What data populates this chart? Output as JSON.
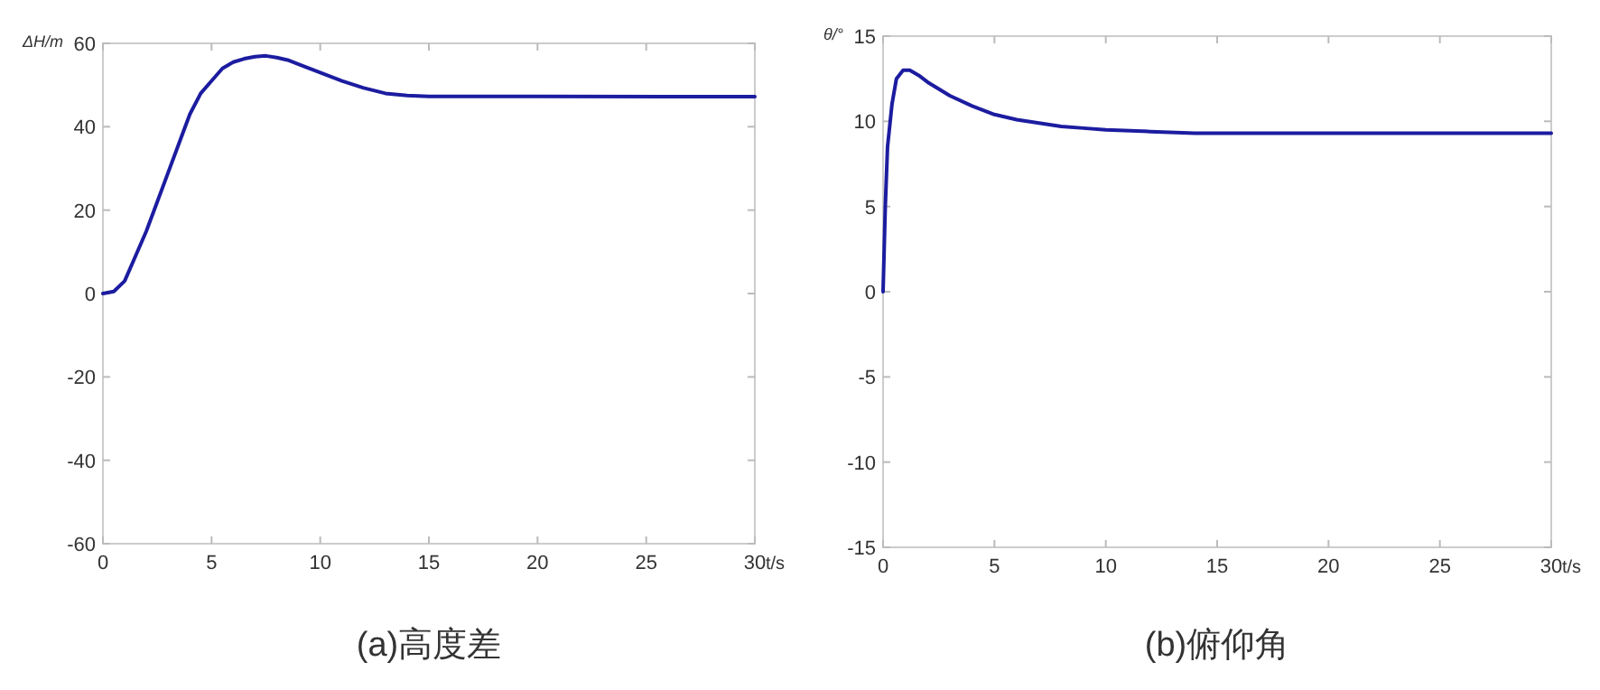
{
  "chart_data": [
    {
      "type": "line",
      "title": "(a)高度差",
      "xlabel": "t/s",
      "ylabel": "ΔH/m",
      "xlim": [
        0,
        30
      ],
      "ylim": [
        -60,
        60
      ],
      "xticks": [
        0,
        5,
        10,
        15,
        20,
        25,
        30
      ],
      "yticks": [
        -60,
        -40,
        -20,
        0,
        20,
        40,
        60
      ],
      "x": [
        0,
        0.5,
        1,
        1.5,
        2,
        2.5,
        3,
        3.5,
        4,
        4.5,
        5,
        5.5,
        6,
        6.5,
        7,
        7.5,
        8,
        8.5,
        9,
        10,
        11,
        12,
        13,
        14,
        15,
        20,
        26,
        30
      ],
      "series": [
        {
          "color": "#1c1ca0",
          "values": [
            0,
            0.5,
            3,
            9,
            15,
            22,
            29,
            36,
            43,
            48,
            51,
            54,
            55.5,
            56.3,
            56.8,
            57,
            56.6,
            56,
            55,
            53,
            51,
            49.3,
            48,
            47.5,
            47.3,
            47.3,
            47.2,
            47.2
          ]
        }
      ]
    },
    {
      "type": "line",
      "title": "(b)俯仰角",
      "xlabel": "t/s",
      "ylabel": "θ/°",
      "xlim": [
        0,
        30
      ],
      "ylim": [
        -15,
        15
      ],
      "xticks": [
        0,
        5,
        10,
        15,
        20,
        25,
        30
      ],
      "yticks": [
        -15,
        -10,
        -5,
        0,
        5,
        10,
        15
      ],
      "x": [
        0,
        0.1,
        0.2,
        0.4,
        0.6,
        0.9,
        1.2,
        1.6,
        2,
        3,
        4,
        5,
        6,
        7,
        8,
        9,
        10,
        12,
        14,
        20,
        30
      ],
      "series": [
        {
          "color": "#1c1ca0",
          "values": [
            0,
            5,
            8.5,
            11,
            12.5,
            13,
            13,
            12.7,
            12.3,
            11.5,
            10.9,
            10.4,
            10.1,
            9.9,
            9.7,
            9.6,
            9.5,
            9.4,
            9.3,
            9.3,
            9.3
          ]
        }
      ]
    }
  ]
}
